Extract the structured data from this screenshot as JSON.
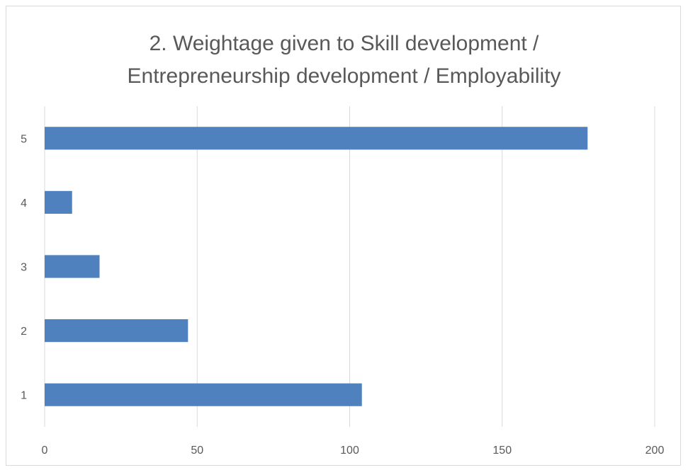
{
  "chart_data": {
    "type": "bar",
    "orientation": "horizontal",
    "title_lines": [
      "2. Weightage given to Skill development /",
      "Entrepreneurship development / Employability"
    ],
    "categories": [
      "1",
      "2",
      "3",
      "4",
      "5"
    ],
    "values": [
      104,
      47,
      18,
      9,
      178
    ],
    "xlim": [
      0,
      200
    ],
    "x_ticks": [
      "0",
      "50",
      "100",
      "150",
      "200"
    ],
    "grid": true,
    "legend": "none",
    "bar_color": "#4e81bd",
    "grid_color": "#d9d9d9"
  }
}
